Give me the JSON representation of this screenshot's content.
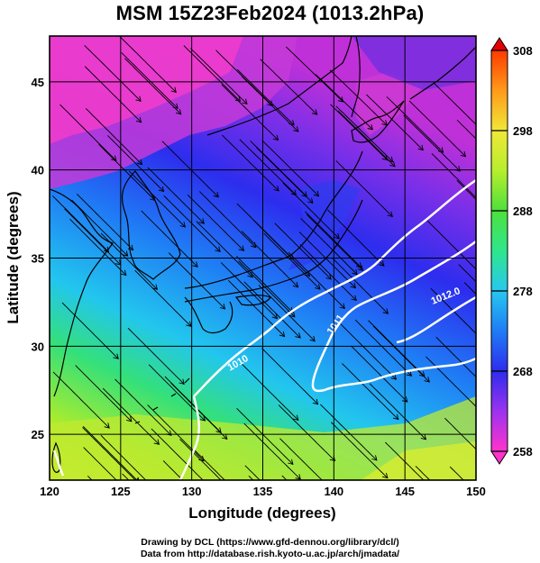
{
  "title": "MSM 15Z23Feb2024 (1013.2hPa)",
  "axes": {
    "xlabel": "Longitude (degrees)",
    "ylabel": "Latitude  (degrees)",
    "xticks": [
      "120",
      "125",
      "130",
      "135",
      "140",
      "145",
      "150"
    ],
    "yticks": [
      "25",
      "30",
      "35",
      "40",
      "45"
    ],
    "xlim": [
      120,
      150
    ],
    "ylim": [
      22.4,
      47.6
    ]
  },
  "colorbar": {
    "ticks": [
      "258",
      "268",
      "278",
      "288",
      "298",
      "308"
    ],
    "range": [
      258,
      308
    ],
    "colors": [
      "#ff33cc",
      "#9b33ee",
      "#2d2dee",
      "#1f7cf5",
      "#27c8f0",
      "#2fe68c",
      "#4ee03c",
      "#b6ee2e",
      "#f0e838",
      "#ff9a1a",
      "#ff3a00",
      "#e60000"
    ]
  },
  "contours": {
    "label1": "1012.0",
    "label2": "1011",
    "label3": "1010"
  },
  "footer": {
    "line1": "Drawing by DCL (https://www.gfd-dennou.org/library/dcl/)",
    "line2": "Data from http://database.rish.kyoto-u.ac.jp/arch/jmadata/"
  },
  "chart_data": {
    "type": "heatmap",
    "title": "MSM 15Z23Feb2024 (1013.2hPa)",
    "xlabel": "Longitude (degrees)",
    "ylabel": "Latitude  (degrees)",
    "xlim": [
      120,
      150
    ],
    "ylim": [
      22.4,
      47.6
    ],
    "colorbar_range": [
      258,
      308
    ],
    "colorbar_ticks": [
      258,
      268,
      278,
      288,
      298,
      308
    ],
    "grid": true,
    "contour_labels": [
      "1012.0",
      "1011",
      "1010"
    ]
  }
}
